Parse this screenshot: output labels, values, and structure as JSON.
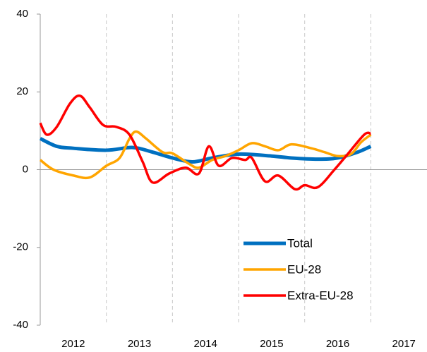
{
  "chart_data": {
    "type": "line",
    "xlim": [
      2012,
      2017.85
    ],
    "ylim": [
      -40,
      40
    ],
    "yticks": [
      -40,
      -20,
      0,
      20,
      40
    ],
    "xticks": [
      {
        "value": 2012.5,
        "label": "2012"
      },
      {
        "value": 2013.5,
        "label": "2013"
      },
      {
        "value": 2014.5,
        "label": "2014"
      },
      {
        "value": 2015.5,
        "label": "2015"
      },
      {
        "value": 2016.5,
        "label": "2016"
      },
      {
        "value": 2017.5,
        "label": "2017"
      }
    ],
    "xgrid": [
      2013,
      2014,
      2015,
      2016,
      2017
    ],
    "legend": "lower right",
    "series": [
      {
        "name": "Total",
        "color": "#0070c0",
        "x": [
          2012.0,
          2012.25,
          2012.5,
          2013.0,
          2013.4,
          2013.7,
          2014.0,
          2014.3,
          2014.6,
          2015.0,
          2015.5,
          2015.8,
          2016.2,
          2016.5,
          2016.8,
          2017.0
        ],
        "values": [
          8,
          6,
          5.5,
          5,
          5.7,
          4.5,
          3,
          2,
          3,
          4,
          3.5,
          3,
          2.7,
          3,
          4.5,
          6
        ]
      },
      {
        "name": "EU-28",
        "color": "#ffa500",
        "x": [
          2012.0,
          2012.2,
          2012.5,
          2012.75,
          2013.0,
          2013.2,
          2013.35,
          2013.45,
          2013.6,
          2013.85,
          2014.0,
          2014.25,
          2014.4,
          2014.6,
          2014.8,
          2015.0,
          2015.2,
          2015.4,
          2015.6,
          2015.8,
          2016.1,
          2016.3,
          2016.5,
          2016.7,
          2016.85,
          2017.0
        ],
        "values": [
          2.5,
          0,
          -1.5,
          -2,
          1,
          3,
          8,
          9.8,
          8,
          4.5,
          4.2,
          1.5,
          0.5,
          2.5,
          3.5,
          5,
          6.8,
          6,
          5,
          6.5,
          5.5,
          4.5,
          3.5,
          4,
          7,
          9
        ]
      },
      {
        "name": "Extra-EU-28",
        "color": "#ff0000",
        "x": [
          2012.0,
          2012.1,
          2012.25,
          2012.45,
          2012.6,
          2012.75,
          2012.95,
          2013.15,
          2013.35,
          2013.55,
          2013.7,
          2013.95,
          2014.2,
          2014.4,
          2014.55,
          2014.7,
          2014.9,
          2015.1,
          2015.2,
          2015.4,
          2015.6,
          2015.85,
          2016.0,
          2016.2,
          2016.45,
          2016.65,
          2016.9,
          2017.0
        ],
        "values": [
          12,
          9,
          11,
          17,
          19,
          16,
          11.5,
          11,
          9,
          2,
          -3.3,
          -1,
          0.5,
          -1,
          6,
          1,
          3,
          2.5,
          3,
          -3,
          -1.5,
          -5,
          -4,
          -4.5,
          0,
          4,
          9,
          9.3
        ]
      }
    ]
  }
}
